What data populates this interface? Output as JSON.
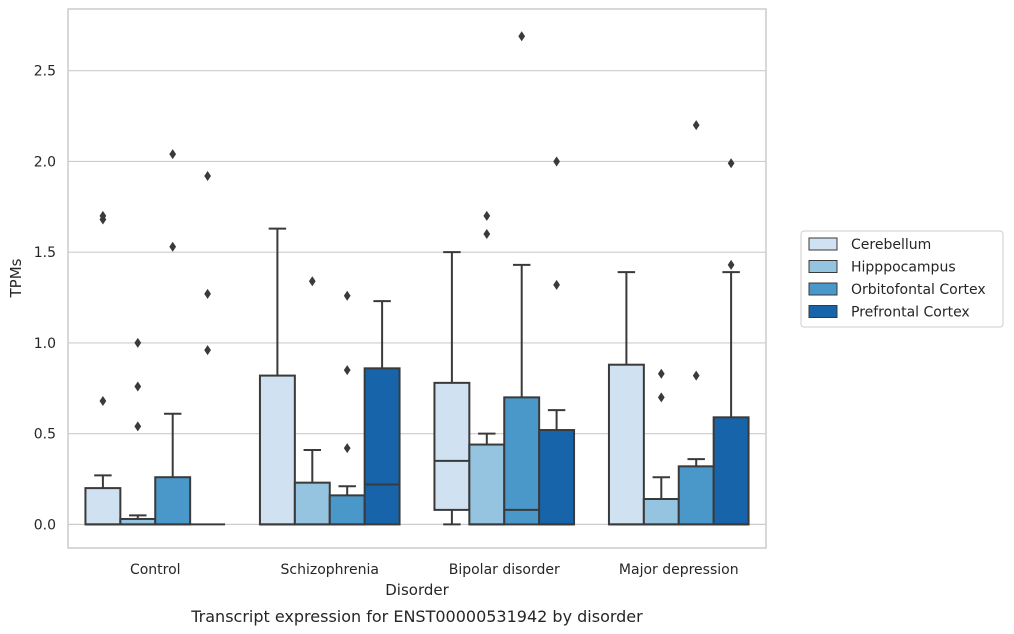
{
  "chart_data": {
    "type": "box",
    "caption": "Transcript expression for ENST00000531942 by disorder",
    "xlabel": "Disorder",
    "ylabel": "TPMs",
    "ylim": [
      -0.13,
      2.84
    ],
    "yticks": [
      "0.0",
      "0.5",
      "1.0",
      "1.5",
      "2.0",
      "2.5"
    ],
    "ytick_values": [
      0,
      0.5,
      1.0,
      1.5,
      2.0,
      2.5
    ],
    "grid": true,
    "legend_position": "right",
    "categories": [
      "Control",
      "Schizophrenia",
      "Bipolar disorder",
      "Major depression"
    ],
    "series": [
      {
        "name": "Cerebellum",
        "color": "#d0e1f2",
        "boxes": [
          {
            "low": 0,
            "q1": 0,
            "median": 0,
            "q3": 0.2,
            "high": 0.27,
            "outliers": [
              1.68,
              1.7,
              0.68
            ]
          },
          {
            "low": 0,
            "q1": 0,
            "median": 0,
            "q3": 0.82,
            "high": 1.63,
            "outliers": []
          },
          {
            "low": 0,
            "q1": 0.08,
            "median": 0.35,
            "q3": 0.78,
            "high": 1.5,
            "outliers": []
          },
          {
            "low": 0,
            "q1": 0,
            "median": 0,
            "q3": 0.88,
            "high": 1.39,
            "outliers": []
          }
        ]
      },
      {
        "name": "Hipppocampus",
        "color": "#94c4df",
        "boxes": [
          {
            "low": 0,
            "q1": 0,
            "median": 0,
            "q3": 0.03,
            "high": 0.05,
            "outliers": [
              1.0,
              0.76,
              0.54
            ]
          },
          {
            "low": 0,
            "q1": 0,
            "median": 0,
            "q3": 0.23,
            "high": 0.41,
            "outliers": [
              1.34
            ]
          },
          {
            "low": 0,
            "q1": 0,
            "median": 0,
            "q3": 0.44,
            "high": 0.5,
            "outliers": [
              1.7,
              1.6
            ]
          },
          {
            "low": 0,
            "q1": 0,
            "median": 0,
            "q3": 0.14,
            "high": 0.26,
            "outliers": [
              0.83,
              0.7
            ]
          }
        ]
      },
      {
        "name": "Orbitofontal Cortex",
        "color": "#4a98c9",
        "boxes": [
          {
            "low": 0,
            "q1": 0,
            "median": 0,
            "q3": 0.26,
            "high": 0.61,
            "outliers": [
              2.04,
              1.53
            ]
          },
          {
            "low": 0,
            "q1": 0,
            "median": 0,
            "q3": 0.16,
            "high": 0.21,
            "outliers": [
              1.26,
              0.85,
              0.42
            ]
          },
          {
            "low": 0,
            "q1": 0,
            "median": 0.08,
            "q3": 0.7,
            "high": 1.43,
            "outliers": [
              2.69
            ]
          },
          {
            "low": 0,
            "q1": 0,
            "median": 0,
            "q3": 0.32,
            "high": 0.36,
            "outliers": [
              2.2,
              0.82
            ]
          }
        ]
      },
      {
        "name": "Prefrontal Cortex",
        "color": "#1764ab",
        "boxes": [
          {
            "low": 0,
            "q1": 0,
            "median": 0,
            "q3": 0,
            "high": 0,
            "outliers": [
              1.92,
              1.27,
              0.96
            ]
          },
          {
            "low": 0,
            "q1": 0,
            "median": 0.22,
            "q3": 0.86,
            "high": 1.23,
            "outliers": []
          },
          {
            "low": 0,
            "q1": 0,
            "median": 0,
            "q3": 0.52,
            "high": 0.63,
            "outliers": [
              2.0,
              1.32
            ]
          },
          {
            "low": 0,
            "q1": 0,
            "median": 0,
            "q3": 0.59,
            "high": 1.39,
            "outliers": [
              1.99,
              1.43
            ]
          }
        ]
      }
    ]
  }
}
